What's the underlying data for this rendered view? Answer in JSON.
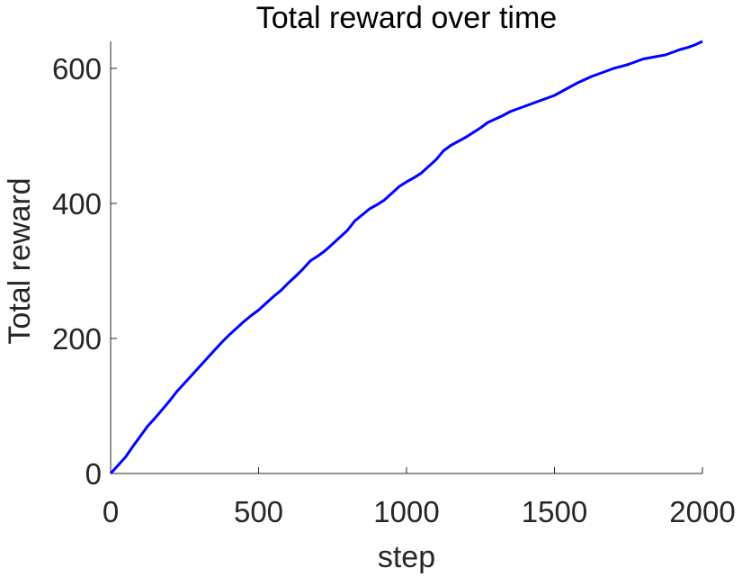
{
  "chart_data": {
    "type": "line",
    "title": "Total reward over time",
    "xlabel": "step",
    "ylabel": "Total reward",
    "xlim": [
      0,
      2000
    ],
    "ylim": [
      0,
      640
    ],
    "xticks": [
      0,
      500,
      1000,
      1500,
      2000
    ],
    "yticks": [
      0,
      200,
      400,
      600
    ],
    "xtick_labels": [
      "0",
      "500",
      "1000",
      "1500",
      "2000"
    ],
    "ytick_labels": [
      "0",
      "200",
      "400",
      "600"
    ],
    "grid": false,
    "box": false,
    "series": [
      {
        "color": "#0000ff",
        "x": [
          0,
          25,
          50,
          75,
          100,
          125,
          150,
          175,
          200,
          225,
          250,
          275,
          300,
          325,
          350,
          375,
          400,
          425,
          450,
          475,
          500,
          525,
          550,
          575,
          600,
          625,
          650,
          675,
          700,
          725,
          750,
          775,
          800,
          825,
          850,
          875,
          900,
          925,
          950,
          975,
          1000,
          1025,
          1050,
          1075,
          1100,
          1125,
          1150,
          1175,
          1200,
          1225,
          1250,
          1275,
          1300,
          1325,
          1350,
          1375,
          1400,
          1425,
          1450,
          1475,
          1500,
          1525,
          1550,
          1575,
          1600,
          1625,
          1650,
          1675,
          1700,
          1725,
          1750,
          1775,
          1800,
          1825,
          1850,
          1875,
          1900,
          1925,
          1950,
          1975,
          2000
        ],
        "y": [
          0,
          12,
          24,
          40,
          55,
          70,
          82,
          95,
          108,
          122,
          134,
          146,
          158,
          170,
          182,
          194,
          205,
          215,
          225,
          234,
          242,
          252,
          262,
          271,
          282,
          292,
          303,
          315,
          322,
          330,
          340,
          350,
          360,
          374,
          383,
          392,
          398,
          405,
          415,
          425,
          432,
          438,
          445,
          455,
          465,
          478,
          486,
          492,
          498,
          505,
          512,
          520,
          525,
          530,
          536,
          540,
          544,
          548,
          552,
          556,
          560,
          566,
          572,
          578,
          583,
          588,
          592,
          596,
          600,
          603,
          606,
          610,
          614,
          616,
          618,
          620,
          624,
          628,
          631,
          635,
          640
        ]
      }
    ]
  }
}
